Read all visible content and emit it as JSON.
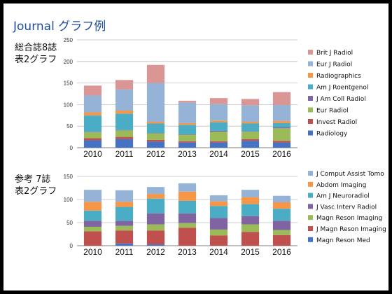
{
  "title": "Journal グラフ例",
  "chart_data": [
    {
      "type": "bar",
      "stacked": true,
      "side_label": [
        "総合誌8誌",
        "表2グラフ"
      ],
      "categories": [
        "2010",
        "2011",
        "2012",
        "2013",
        "2014",
        "2015",
        "2016"
      ],
      "ylim": [
        0,
        250
      ],
      "yticks": [
        0,
        50,
        100,
        150,
        200,
        250
      ],
      "grid": true,
      "legend_position": "right",
      "series": [
        {
          "name": "Radiology",
          "color": "#4472c4",
          "values": [
            17,
            20,
            14,
            12,
            12,
            16,
            12
          ]
        },
        {
          "name": "Invest Radiol",
          "color": "#c0504d",
          "values": [
            5,
            5,
            4,
            3,
            3,
            4,
            4
          ]
        },
        {
          "name": "Eur Radiol",
          "color": "#9bbb59",
          "values": [
            14,
            15,
            15,
            15,
            22,
            17,
            29
          ]
        },
        {
          "name": "J Am Coll Radiol",
          "color": "#8064a2",
          "values": [
            1,
            1,
            1,
            1,
            2,
            1,
            2
          ]
        },
        {
          "name": "Am J Roentgenol",
          "color": "#4bacc6",
          "values": [
            38,
            38,
            22,
            22,
            20,
            18,
            10
          ]
        },
        {
          "name": "Radiographics",
          "color": "#f79646",
          "values": [
            7,
            7,
            4,
            4,
            4,
            4,
            5
          ]
        },
        {
          "name": "Eur J Radiol",
          "color": "#95b3d7",
          "values": [
            39,
            49,
            90,
            48,
            38,
            38,
            37
          ]
        },
        {
          "name": "Brit J Radiol",
          "color": "#d99694",
          "values": [
            23,
            22,
            42,
            4,
            14,
            15,
            30
          ]
        }
      ]
    },
    {
      "type": "bar",
      "stacked": true,
      "side_label": [
        "参考 7誌",
        "表2グラフ"
      ],
      "categories": [
        "2010",
        "2011",
        "2012",
        "2013",
        "2014",
        "2015",
        "2016"
      ],
      "ylim": [
        0,
        150
      ],
      "yticks": [
        0,
        50,
        100,
        150
      ],
      "grid": true,
      "legend_position": "right",
      "series": [
        {
          "name": "Magn Reson Med",
          "color": "#4472c4",
          "values": [
            0,
            5,
            3,
            0,
            0,
            0,
            0
          ]
        },
        {
          "name": "J Magn Reson Imaging",
          "color": "#c0504d",
          "values": [
            31,
            28,
            30,
            39,
            22,
            30,
            23
          ]
        },
        {
          "name": "Magn Reson Imaging",
          "color": "#9bbb59",
          "values": [
            10,
            10,
            13,
            10,
            13,
            16,
            11
          ]
        },
        {
          "name": "J Vasc Interv Radiol",
          "color": "#8064a2",
          "values": [
            13,
            11,
            24,
            21,
            25,
            18,
            20
          ]
        },
        {
          "name": "Am J Neuroradiol",
          "color": "#4bacc6",
          "values": [
            22,
            30,
            32,
            27,
            26,
            26,
            26
          ]
        },
        {
          "name": "Abdom Imaging",
          "color": "#f79646",
          "values": [
            19,
            11,
            10,
            20,
            10,
            15,
            14
          ]
        },
        {
          "name": "J Comput Assist Tomo",
          "color": "#95b3d7",
          "values": [
            26,
            25,
            15,
            18,
            13,
            16,
            14
          ]
        }
      ]
    }
  ]
}
